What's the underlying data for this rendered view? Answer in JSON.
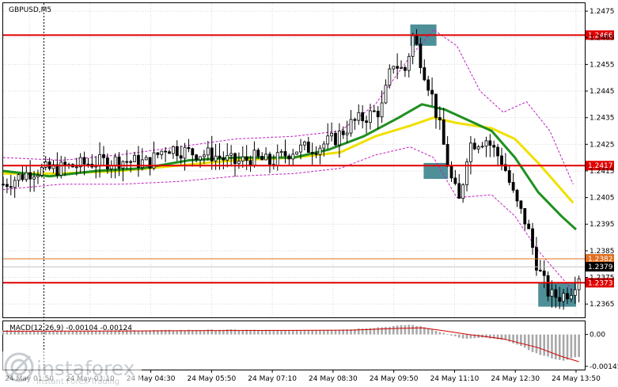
{
  "chart_data": [
    {
      "type": "candlestick",
      "title": "GBPUSD,M5",
      "ylim": [
        1.236,
        1.2478
      ],
      "y_ticks": [
        "1.2475",
        "1.2465",
        "1.2455",
        "1.2445",
        "1.2435",
        "1.2425",
        "1.2415",
        "1.2405",
        "1.2395",
        "1.2385",
        "1.2375",
        "1.2365"
      ],
      "x_ticks": [
        "24 May 01:50",
        "24 May 03:10",
        "24 May 04:30",
        "24 May 05:50",
        "24 May 07:10",
        "24 May 08:30",
        "24 May 09:50",
        "24 May 11:10",
        "24 May 12:30",
        "24 May 13:50"
      ],
      "levels": [
        {
          "value": 1.2466,
          "label": "1.2466",
          "color": "#e00000"
        },
        {
          "value": 1.2417,
          "label": "1.2417",
          "color": "#e00000"
        },
        {
          "value": 1.2373,
          "label": "1.2373",
          "color": "#e00000"
        },
        {
          "value": 1.2382,
          "label": "1.2382",
          "color": "#e07020"
        }
      ],
      "current_price": {
        "value": 1.2379,
        "label": "1.2379"
      },
      "highlight_boxes": [
        {
          "x_from": 0.7,
          "x_to": 0.745,
          "y_from": 1.2462,
          "y_to": 1.247
        },
        {
          "x_from": 0.723,
          "x_to": 0.765,
          "y_from": 1.2412,
          "y_to": 1.2418
        },
        {
          "x_from": 0.92,
          "x_to": 0.985,
          "y_from": 1.2364,
          "y_to": 1.2373
        }
      ],
      "series": [
        {
          "role": "ohlc",
          "trend": [
            [
              0.0,
              1.241
            ],
            [
              0.05,
              1.2415
            ],
            [
              0.1,
              1.2416
            ],
            [
              0.15,
              1.2418
            ],
            [
              0.2,
              1.2419
            ],
            [
              0.25,
              1.2418
            ],
            [
              0.28,
              1.2424
            ],
            [
              0.32,
              1.2422
            ],
            [
              0.36,
              1.2421
            ],
            [
              0.4,
              1.2418
            ],
            [
              0.43,
              1.242
            ],
            [
              0.46,
              1.2418
            ],
            [
              0.5,
              1.2423
            ],
            [
              0.54,
              1.2424
            ],
            [
              0.57,
              1.2427
            ],
            [
              0.6,
              1.2433
            ],
            [
              0.63,
              1.2436
            ],
            [
              0.65,
              1.2438
            ],
            [
              0.67,
              1.2456
            ],
            [
              0.69,
              1.2452
            ],
            [
              0.705,
              1.2466
            ],
            [
              0.72,
              1.2455
            ],
            [
              0.735,
              1.2445
            ],
            [
              0.75,
              1.2432
            ],
            [
              0.77,
              1.2412
            ],
            [
              0.785,
              1.2403
            ],
            [
              0.8,
              1.2425
            ],
            [
              0.83,
              1.2427
            ],
            [
              0.86,
              1.2418
            ],
            [
              0.88,
              1.2404
            ],
            [
              0.9,
              1.2395
            ],
            [
              0.92,
              1.2378
            ],
            [
              0.94,
              1.2368
            ],
            [
              0.96,
              1.2368
            ],
            [
              0.975,
              1.237
            ],
            [
              0.99,
              1.2376
            ]
          ]
        },
        {
          "role": "ma-yellow",
          "color": "#f0e000",
          "values": [
            [
              0.0,
              1.2414
            ],
            [
              0.1,
              1.2414
            ],
            [
              0.2,
              1.2415
            ],
            [
              0.3,
              1.2417
            ],
            [
              0.4,
              1.2419
            ],
            [
              0.5,
              1.242
            ],
            [
              0.58,
              1.2422
            ],
            [
              0.64,
              1.2428
            ],
            [
              0.7,
              1.2432
            ],
            [
              0.74,
              1.2435
            ],
            [
              0.78,
              1.2433
            ],
            [
              0.84,
              1.2431
            ],
            [
              0.88,
              1.2427
            ],
            [
              0.92,
              1.2418
            ],
            [
              0.98,
              1.2403
            ]
          ]
        },
        {
          "role": "ma-green",
          "color": "#1f9020",
          "values": [
            [
              0.0,
              1.2415
            ],
            [
              0.08,
              1.2413
            ],
            [
              0.16,
              1.2415
            ],
            [
              0.24,
              1.2416
            ],
            [
              0.32,
              1.2419
            ],
            [
              0.4,
              1.242
            ],
            [
              0.5,
              1.242
            ],
            [
              0.56,
              1.2423
            ],
            [
              0.62,
              1.2428
            ],
            [
              0.68,
              1.2435
            ],
            [
              0.72,
              1.244
            ],
            [
              0.76,
              1.2438
            ],
            [
              0.8,
              1.2434
            ],
            [
              0.84,
              1.243
            ],
            [
              0.88,
              1.242
            ],
            [
              0.92,
              1.2407
            ],
            [
              0.96,
              1.2398
            ],
            [
              0.985,
              1.2393
            ]
          ]
        },
        {
          "role": "envelope",
          "color": "#c020c0",
          "values": [
            [
              0.0,
              1.2408
            ],
            [
              0.1,
              1.241
            ],
            [
              0.2,
              1.241
            ],
            [
              0.3,
              1.2411
            ],
            [
              0.4,
              1.2413
            ],
            [
              0.5,
              1.2414
            ],
            [
              0.58,
              1.2416
            ],
            [
              0.64,
              1.2421
            ],
            [
              0.7,
              1.2424
            ],
            [
              0.74,
              1.242
            ],
            [
              0.78,
              1.2405
            ],
            [
              0.84,
              1.2406
            ],
            [
              0.88,
              1.2398
            ],
            [
              0.92,
              1.2385
            ],
            [
              0.98,
              1.237
            ]
          ]
        },
        {
          "role": "envelope",
          "color": "#c020c0",
          "values": [
            [
              0.0,
              1.242
            ],
            [
              0.1,
              1.2419
            ],
            [
              0.2,
              1.2421
            ],
            [
              0.3,
              1.2424
            ],
            [
              0.4,
              1.2427
            ],
            [
              0.5,
              1.2428
            ],
            [
              0.58,
              1.243
            ],
            [
              0.64,
              1.244
            ],
            [
              0.7,
              1.2458
            ],
            [
              0.74,
              1.2468
            ],
            [
              0.78,
              1.2462
            ],
            [
              0.82,
              1.2445
            ],
            [
              0.86,
              1.2437
            ],
            [
              0.9,
              1.2441
            ],
            [
              0.94,
              1.243
            ],
            [
              0.98,
              1.241
            ]
          ]
        }
      ]
    },
    {
      "type": "bar",
      "title": "MACD(12,26,9) -0.00104 -0.00124",
      "ylim": [
        -0.0016,
        0.0006
      ],
      "y_ticks": [
        "0.00",
        "-0.00145"
      ],
      "series": [
        {
          "name": "histogram",
          "trend": [
            [
              0.0,
              0.0002
            ],
            [
              0.1,
              0.00015
            ],
            [
              0.2,
              0.00018
            ],
            [
              0.3,
              0.0002
            ],
            [
              0.4,
              0.00022
            ],
            [
              0.5,
              0.00018
            ],
            [
              0.6,
              0.00025
            ],
            [
              0.66,
              0.00035
            ],
            [
              0.7,
              0.00045
            ],
            [
              0.73,
              0.0003
            ],
            [
              0.76,
              5e-05
            ],
            [
              0.79,
              -0.0002
            ],
            [
              0.83,
              -0.00015
            ],
            [
              0.87,
              -0.0003
            ],
            [
              0.92,
              -0.0009
            ],
            [
              0.96,
              -0.0012
            ],
            [
              0.985,
              -0.00104
            ]
          ]
        },
        {
          "name": "signal",
          "color": "#d00000",
          "values": [
            [
              0.0,
              0.00015
            ],
            [
              0.2,
              0.00016
            ],
            [
              0.4,
              0.00018
            ],
            [
              0.6,
              0.0002
            ],
            [
              0.68,
              0.00028
            ],
            [
              0.72,
              0.0003
            ],
            [
              0.75,
              0.0002
            ],
            [
              0.8,
              0.0
            ],
            [
              0.86,
              -0.0002
            ],
            [
              0.92,
              -0.0006
            ],
            [
              0.96,
              -0.001
            ],
            [
              0.99,
              -0.00124
            ]
          ]
        }
      ]
    }
  ],
  "watermark": {
    "brand": "instaforex",
    "tagline": "Instant Forex Trading"
  }
}
